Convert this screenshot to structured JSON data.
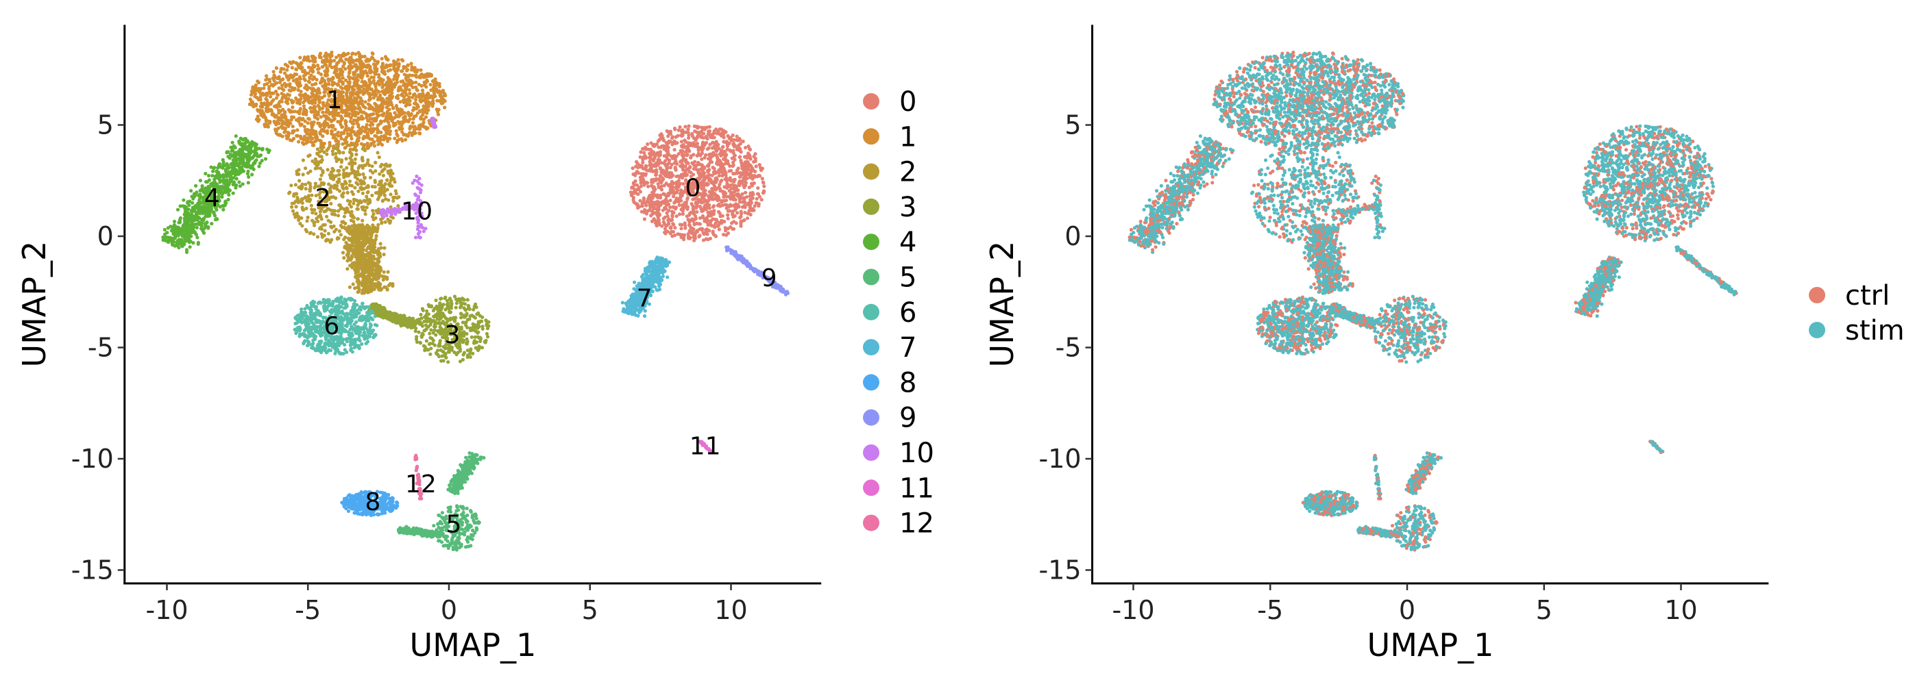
{
  "chart_data": [
    {
      "type": "scatter",
      "title": "",
      "xlabel": "UMAP_1",
      "ylabel": "UMAP_2",
      "xlim": [
        -11.5,
        13.2
      ],
      "ylim": [
        -15.6,
        9.5
      ],
      "xticks": [
        -10,
        -5,
        0,
        5,
        10
      ],
      "yticks": [
        5,
        0,
        -5,
        -10,
        -15
      ],
      "grid": false,
      "legend_position": "right",
      "color_by": "cluster",
      "legend": [
        "0",
        "1",
        "2",
        "3",
        "4",
        "5",
        "6",
        "7",
        "8",
        "9",
        "10",
        "11",
        "12"
      ],
      "colors": [
        "#E57F72",
        "#D58E33",
        "#B99B34",
        "#95A537",
        "#5BB335",
        "#57BB7A",
        "#56BFAE",
        "#53B9D6",
        "#4DAAF2",
        "#8D94F7",
        "#C97BF2",
        "#E66FD3",
        "#EC73A4"
      ],
      "clusters": [
        {
          "id": "0",
          "label_pos": [
            8.65,
            2.2
          ],
          "shapes": [
            {
              "kind": "ellipse",
              "c": [
                8.8,
                2.4
              ],
              "r": [
                2.4,
                2.6
              ]
            }
          ],
          "n": 1500
        },
        {
          "id": "1",
          "label_pos": [
            -4.06,
            6.15
          ],
          "shapes": [
            {
              "kind": "ellipse",
              "c": [
                -3.6,
                6.1
              ],
              "r": [
                3.5,
                2.2
              ]
            }
          ],
          "n": 1900
        },
        {
          "id": "2",
          "label_pos": [
            -4.47,
            1.75
          ],
          "shapes": [
            {
              "kind": "ellipse",
              "c": [
                -3.7,
                1.9
              ],
              "r": [
                2.0,
                2.3
              ]
            },
            {
              "kind": "segment",
              "a": [
                -3.2,
                0.5
              ],
              "b": [
                -2.7,
                -2.5
              ],
              "w": 0.9
            }
          ],
          "n": 1200
        },
        {
          "id": "3",
          "label_pos": [
            0.12,
            -4.4
          ],
          "shapes": [
            {
              "kind": "ellipse",
              "c": [
                0.1,
                -4.2
              ],
              "r": [
                1.35,
                1.5
              ]
            },
            {
              "kind": "segment",
              "a": [
                -2.8,
                -3.2
              ],
              "b": [
                -1.2,
                -4.0
              ],
              "w": 0.3
            }
          ],
          "n": 800
        },
        {
          "id": "4",
          "label_pos": [
            -8.4,
            1.75
          ],
          "shapes": [
            {
              "kind": "segment",
              "a": [
                -9.8,
                -0.4
              ],
              "b": [
                -6.9,
                4.2
              ],
              "w": 0.9
            }
          ],
          "n": 800
        },
        {
          "id": "5",
          "label_pos": [
            0.17,
            -12.9
          ],
          "shapes": [
            {
              "kind": "ellipse",
              "c": [
                0.3,
                -13.1
              ],
              "r": [
                0.85,
                1.0
              ]
            },
            {
              "kind": "segment",
              "a": [
                0.1,
                -11.5
              ],
              "b": [
                1.0,
                -9.8
              ],
              "w": 0.35
            },
            {
              "kind": "segment",
              "a": [
                -1.8,
                -13.2
              ],
              "b": [
                -0.3,
                -13.4
              ],
              "w": 0.2
            }
          ],
          "n": 700
        },
        {
          "id": "6",
          "label_pos": [
            -4.16,
            -4.0
          ],
          "shapes": [
            {
              "kind": "ellipse",
              "c": [
                -4.0,
                -4.0
              ],
              "r": [
                1.5,
                1.3
              ]
            }
          ],
          "n": 700
        },
        {
          "id": "7",
          "label_pos": [
            6.93,
            -2.75
          ],
          "shapes": [
            {
              "kind": "segment",
              "a": [
                6.4,
                -3.5
              ],
              "b": [
                7.6,
                -1.0
              ],
              "w": 0.55
            }
          ],
          "n": 450
        },
        {
          "id": "8",
          "label_pos": [
            -2.7,
            -11.9
          ],
          "shapes": [
            {
              "kind": "ellipse",
              "c": [
                -2.8,
                -12.0
              ],
              "r": [
                1.0,
                0.55
              ]
            }
          ],
          "n": 350
        },
        {
          "id": "9",
          "label_pos": [
            11.35,
            -1.85
          ],
          "shapes": [
            {
              "kind": "segment",
              "a": [
                9.8,
                -0.5
              ],
              "b": [
                12.0,
                -2.6
              ],
              "w": 0.15
            }
          ],
          "n": 150
        },
        {
          "id": "10",
          "label_pos": [
            -1.14,
            1.15
          ],
          "shapes": [
            {
              "kind": "segment",
              "a": [
                -1.1,
                2.7
              ],
              "b": [
                -1.0,
                -0.1
              ],
              "w": 0.25
            },
            {
              "kind": "segment",
              "a": [
                -2.4,
                1.0
              ],
              "b": [
                -1.2,
                1.4
              ],
              "w": 0.2
            },
            {
              "kind": "segment",
              "a": [
                -0.6,
                5.3
              ],
              "b": [
                -0.5,
                4.9
              ],
              "w": 0.05
            }
          ],
          "n": 180
        },
        {
          "id": "11",
          "label_pos": [
            9.08,
            -9.4
          ],
          "shapes": [
            {
              "kind": "segment",
              "a": [
                8.9,
                -9.2
              ],
              "b": [
                9.3,
                -9.7
              ],
              "w": 0.06
            }
          ],
          "n": 30
        },
        {
          "id": "12",
          "label_pos": [
            -1.0,
            -11.1
          ],
          "shapes": [
            {
              "kind": "segment",
              "a": [
                -1.2,
                -9.8
              ],
              "b": [
                -1.0,
                -11.8
              ],
              "w": 0.08
            }
          ],
          "n": 40
        }
      ]
    },
    {
      "type": "scatter",
      "title": "",
      "xlabel": "UMAP_1",
      "ylabel": "UMAP_2",
      "xlim": [
        -11.5,
        13.2
      ],
      "ylim": [
        -15.6,
        9.5
      ],
      "xticks": [
        -10,
        -5,
        0,
        5,
        10
      ],
      "yticks": [
        5,
        0,
        -5,
        -10,
        -15
      ],
      "grid": false,
      "legend_position": "right",
      "color_by": "condition",
      "legend": [
        "ctrl",
        "stim"
      ],
      "colors": [
        "#E5806F",
        "#55BBC1"
      ],
      "ctrl_fraction": 0.3,
      "same_embedding_as_left": true
    }
  ]
}
